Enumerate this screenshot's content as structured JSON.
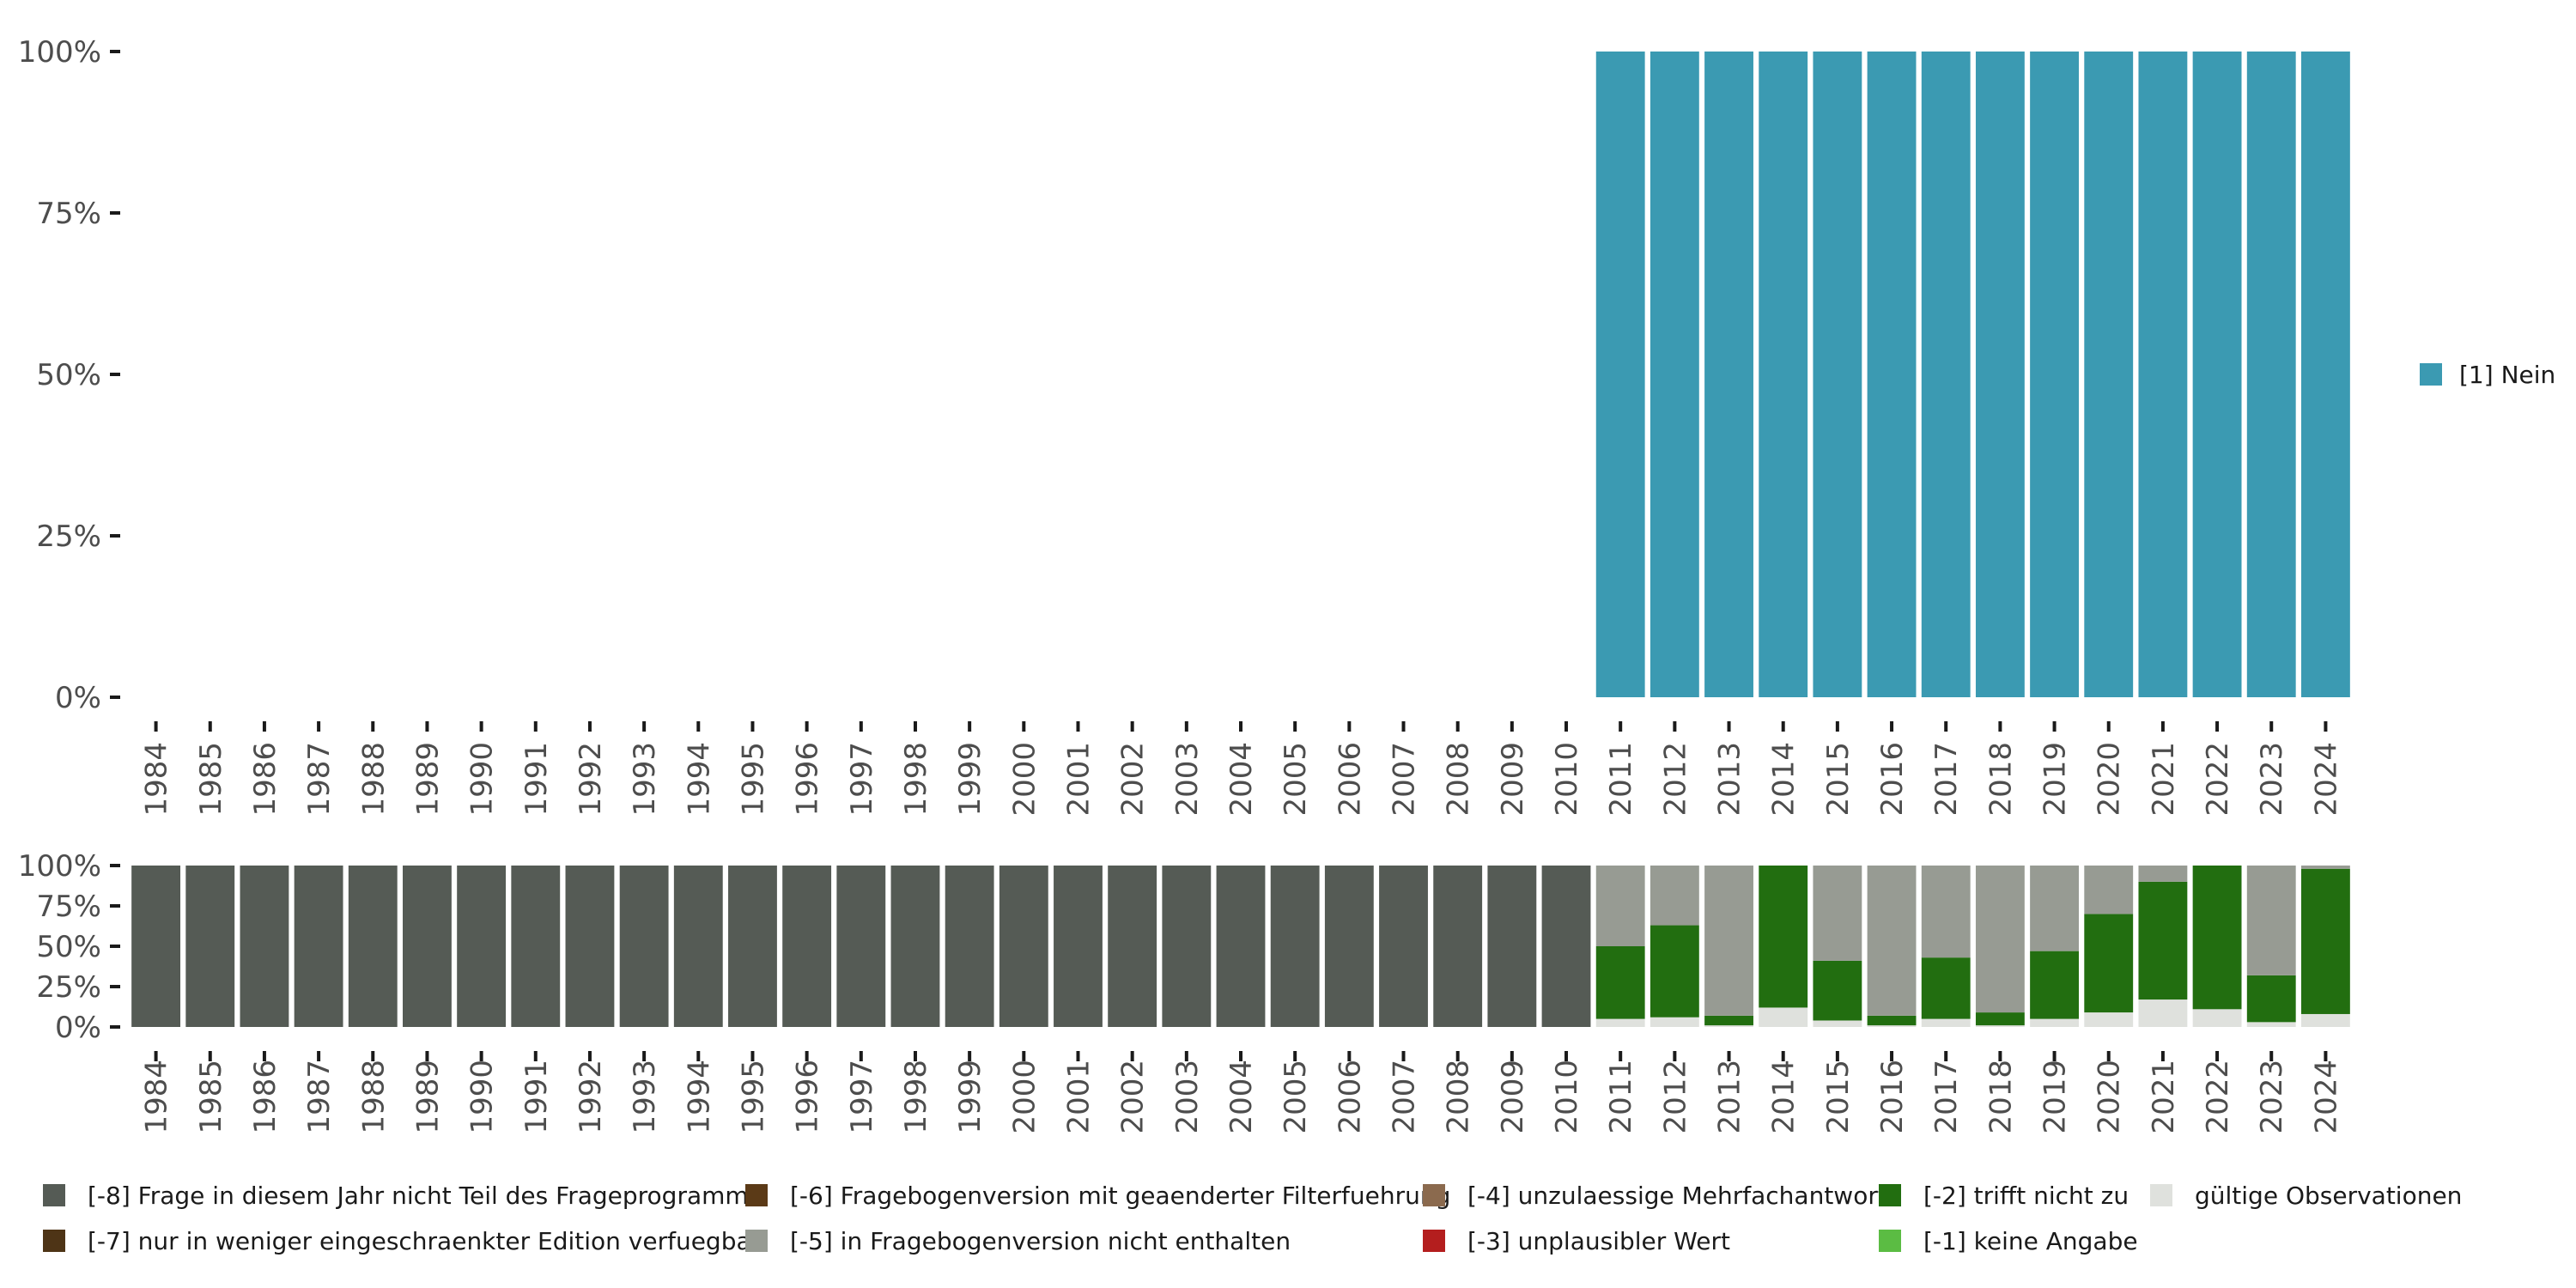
{
  "chart_data": [
    {
      "type": "bar",
      "stacked": true,
      "categories": [
        "1984",
        "1985",
        "1986",
        "1987",
        "1988",
        "1989",
        "1990",
        "1991",
        "1992",
        "1993",
        "1994",
        "1995",
        "1996",
        "1997",
        "1998",
        "1999",
        "2000",
        "2001",
        "2002",
        "2003",
        "2004",
        "2005",
        "2006",
        "2007",
        "2008",
        "2009",
        "2010",
        "2011",
        "2012",
        "2013",
        "2014",
        "2015",
        "2016",
        "2017",
        "2018",
        "2019",
        "2020",
        "2021",
        "2022",
        "2023",
        "2024"
      ],
      "ylim": [
        0,
        100
      ],
      "yticks": [
        0,
        25,
        50,
        75,
        100
      ],
      "ytick_labels": [
        "0%",
        "25%",
        "50%",
        "75%",
        "100%"
      ],
      "legend_position": "right",
      "series": [
        {
          "name": "[1] Nein",
          "color": "#3B9AB2",
          "values": [
            0,
            0,
            0,
            0,
            0,
            0,
            0,
            0,
            0,
            0,
            0,
            0,
            0,
            0,
            0,
            0,
            0,
            0,
            0,
            0,
            0,
            0,
            0,
            0,
            0,
            0,
            0,
            100,
            100,
            100,
            100,
            100,
            100,
            100,
            100,
            100,
            100,
            100,
            100,
            100,
            100
          ]
        }
      ]
    },
    {
      "type": "bar",
      "stacked": true,
      "categories": [
        "1984",
        "1985",
        "1986",
        "1987",
        "1988",
        "1989",
        "1990",
        "1991",
        "1992",
        "1993",
        "1994",
        "1995",
        "1996",
        "1997",
        "1998",
        "1999",
        "2000",
        "2001",
        "2002",
        "2003",
        "2004",
        "2005",
        "2006",
        "2007",
        "2008",
        "2009",
        "2010",
        "2011",
        "2012",
        "2013",
        "2014",
        "2015",
        "2016",
        "2017",
        "2018",
        "2019",
        "2020",
        "2021",
        "2022",
        "2023",
        "2024"
      ],
      "ylim": [
        0,
        100
      ],
      "yticks": [
        0,
        25,
        50,
        75,
        100
      ],
      "ytick_labels": [
        "0%",
        "25%",
        "50%",
        "75%",
        "100%"
      ],
      "legend_position": "bottom",
      "stack_order_bottom_to_top": [
        "gültige Observationen",
        "[-2] trifft nicht zu",
        "[-5] in Fragebogenversion nicht enthalten",
        "[-8] Frage in diesem Jahr nicht Teil des Frageprogramms"
      ],
      "series": [
        {
          "name": "gültige Observationen",
          "color": "#DFE1DD",
          "values": [
            0,
            0,
            0,
            0,
            0,
            0,
            0,
            0,
            0,
            0,
            0,
            0,
            0,
            0,
            0,
            0,
            0,
            0,
            0,
            0,
            0,
            0,
            0,
            0,
            0,
            0,
            0,
            5,
            6,
            1,
            12,
            4,
            1,
            5,
            1,
            5,
            9,
            17,
            11,
            3,
            8
          ]
        },
        {
          "name": "[-2] trifft nicht zu",
          "color": "#226E10",
          "values": [
            0,
            0,
            0,
            0,
            0,
            0,
            0,
            0,
            0,
            0,
            0,
            0,
            0,
            0,
            0,
            0,
            0,
            0,
            0,
            0,
            0,
            0,
            0,
            0,
            0,
            0,
            0,
            45,
            57,
            6,
            88,
            37,
            6,
            38,
            8,
            42,
            61,
            73,
            89,
            29,
            90
          ]
        },
        {
          "name": "[-5] in Fragebogenversion nicht enthalten",
          "color": "#979B93",
          "values": [
            0,
            0,
            0,
            0,
            0,
            0,
            0,
            0,
            0,
            0,
            0,
            0,
            0,
            0,
            0,
            0,
            0,
            0,
            0,
            0,
            0,
            0,
            0,
            0,
            0,
            0,
            0,
            50,
            37,
            93,
            0,
            59,
            93,
            57,
            91,
            53,
            30,
            10,
            0,
            68,
            2
          ]
        },
        {
          "name": "[-8] Frage in diesem Jahr nicht Teil des Frageprogramms",
          "color": "#555B55",
          "values": [
            100,
            100,
            100,
            100,
            100,
            100,
            100,
            100,
            100,
            100,
            100,
            100,
            100,
            100,
            100,
            100,
            100,
            100,
            100,
            100,
            100,
            100,
            100,
            100,
            100,
            100,
            100,
            0,
            0,
            0,
            0,
            0,
            0,
            0,
            0,
            0,
            0,
            0,
            0,
            0,
            0
          ]
        }
      ],
      "legend": [
        {
          "label": "[-8] Frage in diesem Jahr nicht Teil des Frageprogramms",
          "color": "#555B55"
        },
        {
          "label": "[-7] nur in weniger eingeschraenkter Edition verfuegbar",
          "color": "#4E3416"
        },
        {
          "label": "[-6] Fragebogenversion mit geaenderter Filterfuehrung",
          "color": "#5B3A17"
        },
        {
          "label": "[-5] in Fragebogenversion nicht enthalten",
          "color": "#979B93"
        },
        {
          "label": "[-4] unzulaessige Mehrfachantwort",
          "color": "#8B6A4E"
        },
        {
          "label": "[-3] unplausibler Wert",
          "color": "#B41E1E"
        },
        {
          "label": "[-2] trifft nicht zu",
          "color": "#226E10"
        },
        {
          "label": "[-1] keine Angabe",
          "color": "#5BBC43"
        },
        {
          "label": "gültige Observationen",
          "color": "#DFE1DD"
        }
      ]
    }
  ]
}
